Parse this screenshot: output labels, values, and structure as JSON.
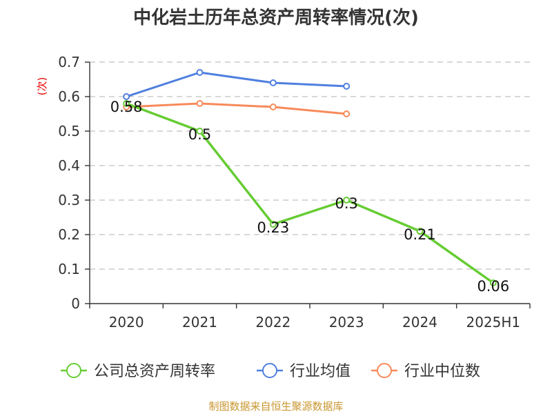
{
  "colors": {
    "company": "#66cc33",
    "industry_avg": "#4f7fdf",
    "industry_median": "#f78a5a"
  },
  "chart_data": {
    "type": "line",
    "title": "中化岩土历年总资产周转率情况(次)",
    "ylabel": "(次)",
    "xlabel": "",
    "categories": [
      "2020",
      "2021",
      "2022",
      "2023",
      "2024",
      "2025H1"
    ],
    "ylim": [
      0,
      0.7
    ],
    "yticks": [
      "0",
      "0.1",
      "0.2",
      "0.3",
      "0.4",
      "0.5",
      "0.6",
      "0.7"
    ],
    "grid": true,
    "legend_position": "bottom",
    "series": [
      {
        "name": "公司总资产周转率",
        "color_key": "company",
        "values": [
          0.58,
          0.5,
          0.23,
          0.3,
          0.21,
          0.06
        ],
        "labels": [
          "0.58",
          "0.5",
          "0.23",
          "0.3",
          "0.21",
          "0.06"
        ]
      },
      {
        "name": "行业均值",
        "color_key": "industry_avg",
        "values": [
          0.6,
          0.67,
          0.64,
          0.63,
          null,
          null
        ]
      },
      {
        "name": "行业中位数",
        "color_key": "industry_median",
        "values": [
          0.57,
          0.58,
          0.57,
          0.55,
          null,
          null
        ]
      }
    ]
  },
  "source_text": "制图数据来自恒生聚源数据库"
}
